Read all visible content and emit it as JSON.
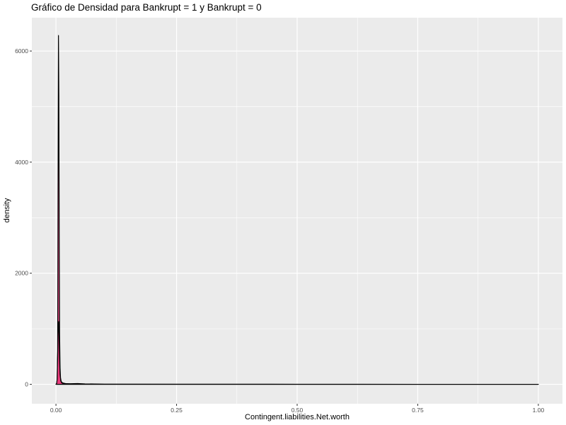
{
  "chart_data": {
    "type": "area",
    "title": "Gráfico de Densidad para Bankrupt = 1 y Bankrupt = 0",
    "xlabel": "Contingent.liabilities.Net.worth",
    "ylabel": "density",
    "xlim": [
      -0.05,
      1.05
    ],
    "ylim": [
      -350,
      6600
    ],
    "x_ticks": [
      0.0,
      0.25,
      0.5,
      0.75,
      1.0
    ],
    "x_tick_labels": [
      "0.00",
      "0.25",
      "0.50",
      "0.75",
      "1.00"
    ],
    "x_minor_ticks": [
      0.125,
      0.375,
      0.625,
      0.875
    ],
    "y_ticks": [
      0,
      2000,
      4000,
      6000
    ],
    "y_tick_labels": [
      "0",
      "2000",
      "4000",
      "6000"
    ],
    "y_minor_ticks": [
      1000,
      3000,
      5000
    ],
    "grid": true,
    "legend": "none",
    "colors": {
      "panel": "#ebebeb",
      "grid": "#ffffff",
      "fill": "#e8387a",
      "outline": "#000000"
    },
    "series": [
      {
        "x": [
          0.0,
          0.0015,
          0.0025,
          0.0035,
          0.0045,
          0.0052,
          0.006,
          0.0068,
          0.0076,
          0.0085,
          0.0095,
          0.011,
          0.013,
          0.016,
          0.02,
          0.03,
          0.05,
          0.1,
          0.3,
          0.5,
          0.75,
          1.0
        ],
        "y": [
          0,
          15,
          80,
          600,
          4000,
          6280,
          5200,
          2600,
          900,
          300,
          110,
          50,
          30,
          20,
          12,
          6,
          3,
          1,
          0.5,
          0.2,
          0.1,
          0.05
        ]
      },
      {
        "x": [
          0.0,
          0.0015,
          0.0025,
          0.0035,
          0.0045,
          0.0055,
          0.0065,
          0.0075,
          0.0085,
          0.01,
          0.012,
          0.015,
          0.02,
          0.03,
          0.045,
          0.06,
          0.1,
          0.3,
          0.5,
          0.75,
          1.0
        ],
        "y": [
          0,
          15,
          100,
          500,
          1000,
          1130,
          900,
          450,
          180,
          60,
          25,
          15,
          12,
          10,
          14,
          8,
          3,
          1,
          0.5,
          0.2,
          0.1
        ]
      }
    ]
  }
}
